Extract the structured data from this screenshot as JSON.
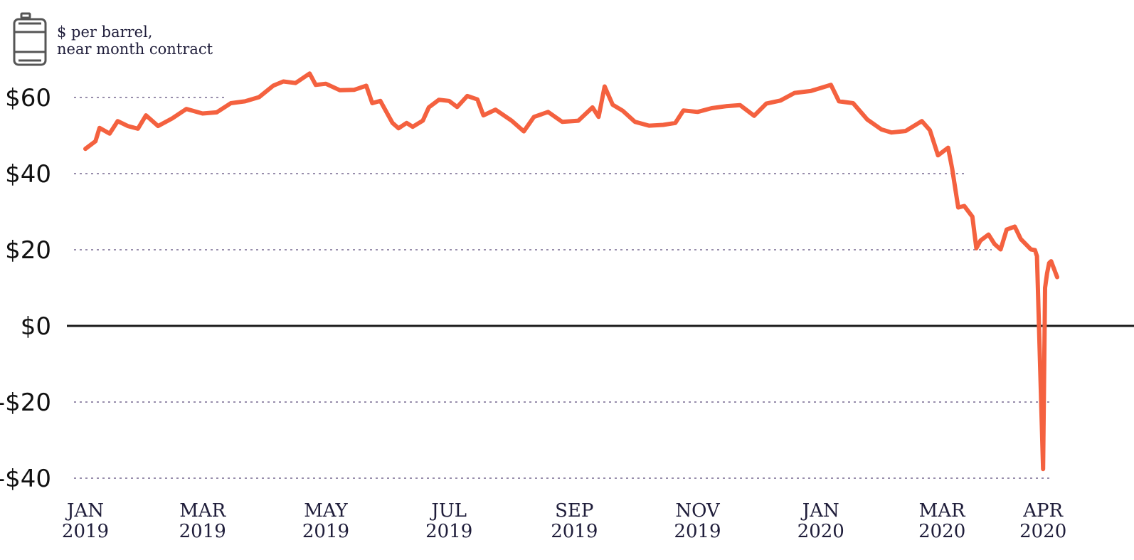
{
  "unit_label": [
    "$ per barrel,",
    "near month contract"
  ],
  "icon": "oil-barrel-icon",
  "colors": {
    "line": "#f4613f",
    "zero_line": "#1a1a1a",
    "grid": "#5a4a7a",
    "text": "#1f1d3a"
  },
  "chart_data": {
    "type": "line",
    "title": "",
    "xlabel": "",
    "ylabel": "$ per barrel, near month contract",
    "ylim": [
      -40,
      60
    ],
    "yticks": [
      60,
      40,
      20,
      0,
      -20,
      -40
    ],
    "ytick_labels": [
      "$60",
      "$40",
      "$20",
      "$0",
      "-$20",
      "-$40"
    ],
    "grid": "horizontal dotted",
    "xtick_labels": [
      {
        "month": "JAN",
        "year": "2019",
        "date": "2019-01-02"
      },
      {
        "month": "MAR",
        "year": "2019",
        "date": "2019-03-01"
      },
      {
        "month": "MAY",
        "year": "2019",
        "date": "2019-05-01"
      },
      {
        "month": "JUL",
        "year": "2019",
        "date": "2019-07-01"
      },
      {
        "month": "SEP",
        "year": "2019",
        "date": "2019-09-01"
      },
      {
        "month": "NOV",
        "year": "2019",
        "date": "2019-11-01"
      },
      {
        "month": "JAN",
        "year": "2020",
        "date": "2020-01-01"
      },
      {
        "month": "MAR",
        "year": "2020",
        "date": "2020-03-01"
      },
      {
        "month": "APR",
        "year": "2020",
        "date": "2020-04-20"
      }
    ],
    "series": [
      {
        "points": [
          [
            "2019-01-02",
            46.5
          ],
          [
            "2019-01-07",
            48.5
          ],
          [
            "2019-01-09",
            52.0
          ],
          [
            "2019-01-14",
            50.5
          ],
          [
            "2019-01-18",
            53.8
          ],
          [
            "2019-01-23",
            52.5
          ],
          [
            "2019-01-28",
            51.8
          ],
          [
            "2019-02-01",
            55.3
          ],
          [
            "2019-02-07",
            52.5
          ],
          [
            "2019-02-14",
            54.5
          ],
          [
            "2019-02-21",
            57.0
          ],
          [
            "2019-03-01",
            55.8
          ],
          [
            "2019-03-08",
            56.1
          ],
          [
            "2019-03-15",
            58.5
          ],
          [
            "2019-03-22",
            59.0
          ],
          [
            "2019-03-29",
            60.1
          ],
          [
            "2019-04-05",
            63.1
          ],
          [
            "2019-04-10",
            64.2
          ],
          [
            "2019-04-16",
            63.8
          ],
          [
            "2019-04-23",
            66.3
          ],
          [
            "2019-04-26",
            63.3
          ],
          [
            "2019-05-01",
            63.6
          ],
          [
            "2019-05-08",
            61.9
          ],
          [
            "2019-05-15",
            62.0
          ],
          [
            "2019-05-21",
            63.1
          ],
          [
            "2019-05-24",
            58.5
          ],
          [
            "2019-05-28",
            59.1
          ],
          [
            "2019-06-03",
            53.3
          ],
          [
            "2019-06-06",
            51.9
          ],
          [
            "2019-06-10",
            53.3
          ],
          [
            "2019-06-13",
            52.3
          ],
          [
            "2019-06-18",
            53.9
          ],
          [
            "2019-06-21",
            57.4
          ],
          [
            "2019-06-26",
            59.4
          ],
          [
            "2019-07-01",
            59.1
          ],
          [
            "2019-07-05",
            57.5
          ],
          [
            "2019-07-10",
            60.4
          ],
          [
            "2019-07-15",
            59.5
          ],
          [
            "2019-07-18",
            55.3
          ],
          [
            "2019-07-24",
            56.8
          ],
          [
            "2019-08-01",
            53.9
          ],
          [
            "2019-08-07",
            51.1
          ],
          [
            "2019-08-12",
            54.9
          ],
          [
            "2019-08-19",
            56.2
          ],
          [
            "2019-08-26",
            53.6
          ],
          [
            "2019-09-03",
            53.9
          ],
          [
            "2019-09-10",
            57.4
          ],
          [
            "2019-09-13",
            54.9
          ],
          [
            "2019-09-16",
            62.9
          ],
          [
            "2019-09-20",
            58.1
          ],
          [
            "2019-09-25",
            56.5
          ],
          [
            "2019-10-01",
            53.6
          ],
          [
            "2019-10-08",
            52.6
          ],
          [
            "2019-10-15",
            52.8
          ],
          [
            "2019-10-21",
            53.3
          ],
          [
            "2019-10-25",
            56.6
          ],
          [
            "2019-11-01",
            56.2
          ],
          [
            "2019-11-08",
            57.2
          ],
          [
            "2019-11-15",
            57.7
          ],
          [
            "2019-11-22",
            58.0
          ],
          [
            "2019-11-29",
            55.2
          ],
          [
            "2019-12-05",
            58.4
          ],
          [
            "2019-12-12",
            59.2
          ],
          [
            "2019-12-19",
            61.2
          ],
          [
            "2019-12-27",
            61.7
          ],
          [
            "2020-01-06",
            63.3
          ],
          [
            "2020-01-10",
            59.0
          ],
          [
            "2020-01-17",
            58.5
          ],
          [
            "2020-01-24",
            54.2
          ],
          [
            "2020-01-31",
            51.6
          ],
          [
            "2020-02-05",
            50.8
          ],
          [
            "2020-02-12",
            51.2
          ],
          [
            "2020-02-20",
            53.8
          ],
          [
            "2020-02-24",
            51.4
          ],
          [
            "2020-02-28",
            44.8
          ],
          [
            "2020-03-04",
            46.8
          ],
          [
            "2020-03-06",
            41.3
          ],
          [
            "2020-03-09",
            31.1
          ],
          [
            "2020-03-12",
            31.5
          ],
          [
            "2020-03-16",
            28.7
          ],
          [
            "2020-03-18",
            20.4
          ],
          [
            "2020-03-20",
            22.4
          ],
          [
            "2020-03-24",
            24.0
          ],
          [
            "2020-03-27",
            21.5
          ],
          [
            "2020-03-30",
            20.1
          ],
          [
            "2020-04-02",
            25.3
          ],
          [
            "2020-04-06",
            26.1
          ],
          [
            "2020-04-09",
            22.8
          ],
          [
            "2020-04-14",
            20.1
          ],
          [
            "2020-04-16",
            19.9
          ],
          [
            "2020-04-17",
            18.3
          ],
          [
            "2020-04-20",
            -37.6
          ],
          [
            "2020-04-21",
            10.0
          ],
          [
            "2020-04-22",
            13.8
          ],
          [
            "2020-04-23",
            16.5
          ],
          [
            "2020-04-24",
            17.0
          ],
          [
            "2020-04-27",
            12.8
          ]
        ]
      }
    ]
  }
}
